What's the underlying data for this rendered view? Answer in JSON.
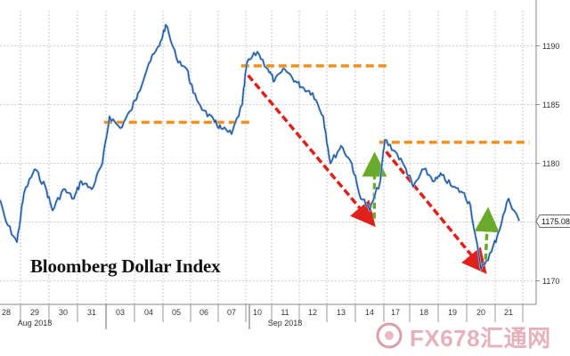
{
  "chart_data": {
    "type": "line",
    "title": "Bloomberg Dollar Index",
    "xlabel": "",
    "ylabel": "",
    "ylim": [
      1168,
      1193
    ],
    "yticks": [
      1170,
      1175,
      1180,
      1185,
      1190
    ],
    "last_value": 1175.08,
    "last_value_label": "1175.08",
    "x_tick_labels": [
      "28",
      "29",
      "30",
      "31",
      "03",
      "04",
      "05",
      "06",
      "07",
      "10",
      "11",
      "12",
      "13",
      "14",
      "17",
      "18",
      "19",
      "20",
      "21"
    ],
    "month_labels": [
      {
        "label": "Aug 2018",
        "at": "29"
      },
      {
        "label": "Sep 2018",
        "at": "11"
      }
    ],
    "series": [
      {
        "values": [
          {
            "x": "28",
            "y": 1178.0
          },
          {
            "x": "28",
            "y": 1175.0
          },
          {
            "x": "28",
            "y": 1173.3
          },
          {
            "x": "29",
            "y": 1177.5
          },
          {
            "x": "29",
            "y": 1179.5
          },
          {
            "x": "29",
            "y": 1178.0
          },
          {
            "x": "30",
            "y": 1176.0
          },
          {
            "x": "30",
            "y": 1177.8
          },
          {
            "x": "30",
            "y": 1177.0
          },
          {
            "x": "31",
            "y": 1178.5
          },
          {
            "x": "31",
            "y": 1177.8
          },
          {
            "x": "31",
            "y": 1180.0
          },
          {
            "x": "03",
            "y": 1184.0
          },
          {
            "x": "03",
            "y": 1183.0
          },
          {
            "x": "03",
            "y": 1184.5
          },
          {
            "x": "04",
            "y": 1186.0
          },
          {
            "x": "04",
            "y": 1188.5
          },
          {
            "x": "04",
            "y": 1190.0
          },
          {
            "x": "05",
            "y": 1191.8
          },
          {
            "x": "05",
            "y": 1189.0
          },
          {
            "x": "05",
            "y": 1188.0
          },
          {
            "x": "06",
            "y": 1186.0
          },
          {
            "x": "06",
            "y": 1184.5
          },
          {
            "x": "06",
            "y": 1183.5
          },
          {
            "x": "07",
            "y": 1183.0
          },
          {
            "x": "07",
            "y": 1182.5
          },
          {
            "x": "07",
            "y": 1185.0
          },
          {
            "x": "10",
            "y": 1188.5
          },
          {
            "x": "10",
            "y": 1189.5
          },
          {
            "x": "10",
            "y": 1188.0
          },
          {
            "x": "11",
            "y": 1187.0
          },
          {
            "x": "11",
            "y": 1188.0
          },
          {
            "x": "11",
            "y": 1187.0
          },
          {
            "x": "12",
            "y": 1186.5
          },
          {
            "x": "12",
            "y": 1186.0
          },
          {
            "x": "12",
            "y": 1184.0
          },
          {
            "x": "13",
            "y": 1180.0
          },
          {
            "x": "13",
            "y": 1181.5
          },
          {
            "x": "13",
            "y": 1180.0
          },
          {
            "x": "14",
            "y": 1177.5
          },
          {
            "x": "14",
            "y": 1176.0
          },
          {
            "x": "14",
            "y": 1178.5
          },
          {
            "x": "17",
            "y": 1182.0
          },
          {
            "x": "17",
            "y": 1181.0
          },
          {
            "x": "17",
            "y": 1179.5
          },
          {
            "x": "18",
            "y": 1178.0
          },
          {
            "x": "18",
            "y": 1179.5
          },
          {
            "x": "18",
            "y": 1178.5
          },
          {
            "x": "19",
            "y": 1179.0
          },
          {
            "x": "19",
            "y": 1178.0
          },
          {
            "x": "19",
            "y": 1177.5
          },
          {
            "x": "20",
            "y": 1176.5
          },
          {
            "x": "20",
            "y": 1171.0
          },
          {
            "x": "20",
            "y": 1172.5
          },
          {
            "x": "21",
            "y": 1174.0
          },
          {
            "x": "21",
            "y": 1177.0
          },
          {
            "x": "21",
            "y": 1175.1
          }
        ]
      }
    ],
    "annotations": {
      "resistance_lines": [
        {
          "y": 1183.5,
          "from": "03",
          "to": "07"
        },
        {
          "y": 1188.3,
          "from": "10",
          "to": "14"
        },
        {
          "y": 1181.8,
          "from": "17",
          "to": "21"
        }
      ],
      "down_arrows": [
        {
          "from": {
            "x": "10",
            "y": 1187.5
          },
          "to": {
            "x": "14",
            "y": 1175.2
          }
        },
        {
          "from": {
            "x": "17",
            "y": 1181.0
          },
          "to": {
            "x": "20",
            "y": 1171.2
          }
        }
      ],
      "up_arrows": [
        {
          "from": {
            "x": "14",
            "y": 1175.3
          },
          "to": {
            "x": "17",
            "y": 1180.2
          }
        },
        {
          "from": {
            "x": "20",
            "y": 1171.8
          },
          "to": {
            "x": "21",
            "y": 1175.5
          }
        }
      ]
    },
    "colors": {
      "line": "#1a4a8a",
      "line_shadow": "#8fb8e8",
      "resistance": "#f0901e",
      "down_arrow": "#e0201a",
      "up_arrow": "#6aaa2a",
      "grid": "#c8c8c8"
    },
    "grid": true
  },
  "watermark": {
    "text": "FX678汇通网",
    "logo": "fx678-logo"
  }
}
